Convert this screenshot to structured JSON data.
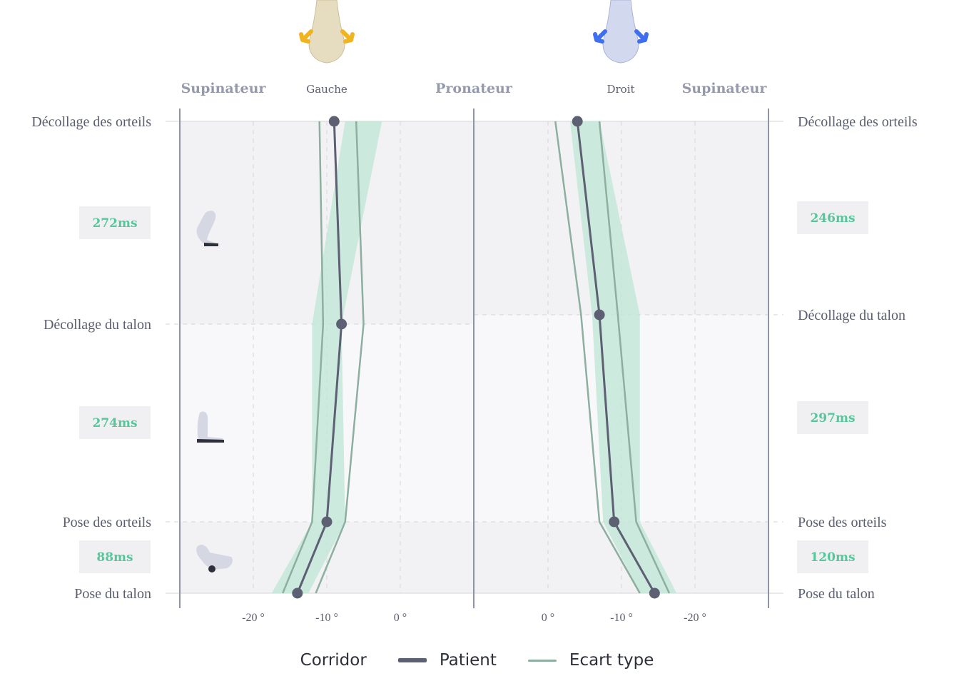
{
  "header": {
    "left_side": "Supinateur",
    "left_foot": "Gauche",
    "center": "Pronateur",
    "right_foot": "Droit",
    "right_side": "Supinateur",
    "left_foot_icon": "left-heel-icon",
    "right_foot_icon": "right-heel-icon"
  },
  "legend": {
    "corridor": "Corridor",
    "patient": "Patient",
    "std": "Ecart type"
  },
  "colors": {
    "corridor": "#bfe6d6",
    "patient": "#5d6072",
    "std": "#8daf9f",
    "duration_text": "#55c79a",
    "left_arrows": "#f2b41c",
    "right_arrows": "#3d6ff0"
  },
  "chart_data": {
    "type": "line",
    "x_unit": "°",
    "xlim": [
      -29,
      10
    ],
    "left": {
      "foot": "Gauche",
      "phases": [
        "Décollage des orteils",
        "Décollage du talon",
        "Pose des orteils",
        "Pose du talon"
      ],
      "x_ticks": [
        "-20 °",
        "-10 °",
        "0 °"
      ],
      "x_tick_values": [
        -20,
        -10,
        0
      ],
      "durations": [
        "272ms",
        "274ms",
        "88ms"
      ],
      "events": [
        {
          "phase": "Décollage des orteils",
          "patient": -9,
          "std_low": -11,
          "std_high": -6,
          "corridor_low": -7.5,
          "corridor_high": -2.5
        },
        {
          "phase": "Décollage du talon",
          "patient": -8,
          "std_low": -10.5,
          "std_high": -5,
          "corridor_low": -12,
          "corridor_high": -8
        },
        {
          "phase": "Pose des orteils",
          "patient": -10,
          "std_low": -12,
          "std_high": -7.5,
          "corridor_low": -12,
          "corridor_high": -7.5
        },
        {
          "phase": "Pose du talon",
          "patient": -14,
          "std_low": -16,
          "std_high": -11.5,
          "corridor_low": -17.5,
          "corridor_high": -12.5
        }
      ]
    },
    "right": {
      "foot": "Droit",
      "phases": [
        "Décollage des orteils",
        "Décollage du talon",
        "Pose des orteils",
        "Pose du talon"
      ],
      "x_ticks": [
        "0 °",
        "-10 °",
        "-20 °"
      ],
      "x_tick_values": [
        0,
        -10,
        -20
      ],
      "durations": [
        "246ms",
        "297ms",
        "120ms"
      ],
      "events": [
        {
          "phase": "Décollage des orteils",
          "patient": -4,
          "std_low": -1,
          "std_high": -7,
          "corridor_low": -3,
          "corridor_high": -7
        },
        {
          "phase": "Décollage du talon",
          "patient": -7,
          "std_low": -4.5,
          "std_high": -9.5,
          "corridor_low": -6,
          "corridor_high": -12.5
        },
        {
          "phase": "Pose des orteils",
          "patient": -9,
          "std_low": -7,
          "std_high": -12,
          "corridor_low": -7.5,
          "corridor_high": -12.5
        },
        {
          "phase": "Pose du talon",
          "patient": -14.5,
          "std_low": -12.5,
          "std_high": -16.5,
          "corridor_low": -12.5,
          "corridor_high": -17.5
        }
      ]
    }
  }
}
